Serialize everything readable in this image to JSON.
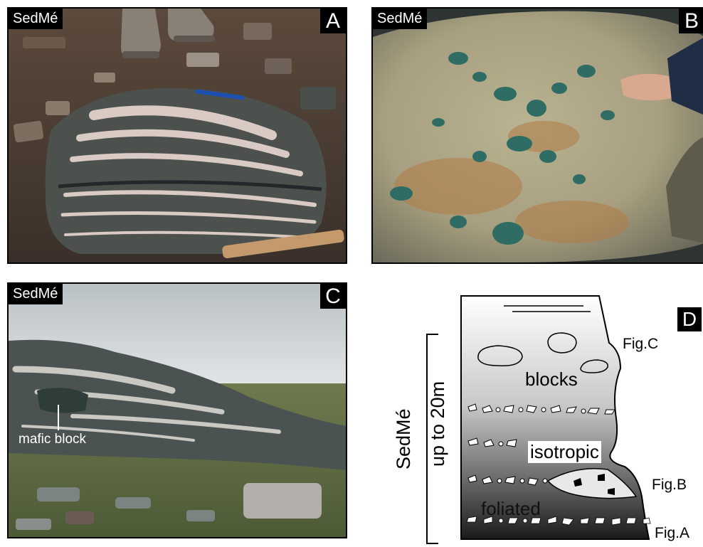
{
  "panels": {
    "a": {
      "tag": "SedMé",
      "letter": "A"
    },
    "b": {
      "tag": "SedMé",
      "letter": "B"
    },
    "c": {
      "tag": "SedMé",
      "letter": "C",
      "annotation": "mafic block"
    },
    "d": {
      "letter": "D",
      "vertical_unit": "SedMé",
      "vertical_thickness": "up to 20m",
      "labels": {
        "blocks": "blocks",
        "isotropic": "isotropic",
        "foliated": "foliated",
        "fig_c": "Fig.C",
        "fig_b": "Fig.B",
        "fig_a": "Fig.A"
      }
    }
  }
}
